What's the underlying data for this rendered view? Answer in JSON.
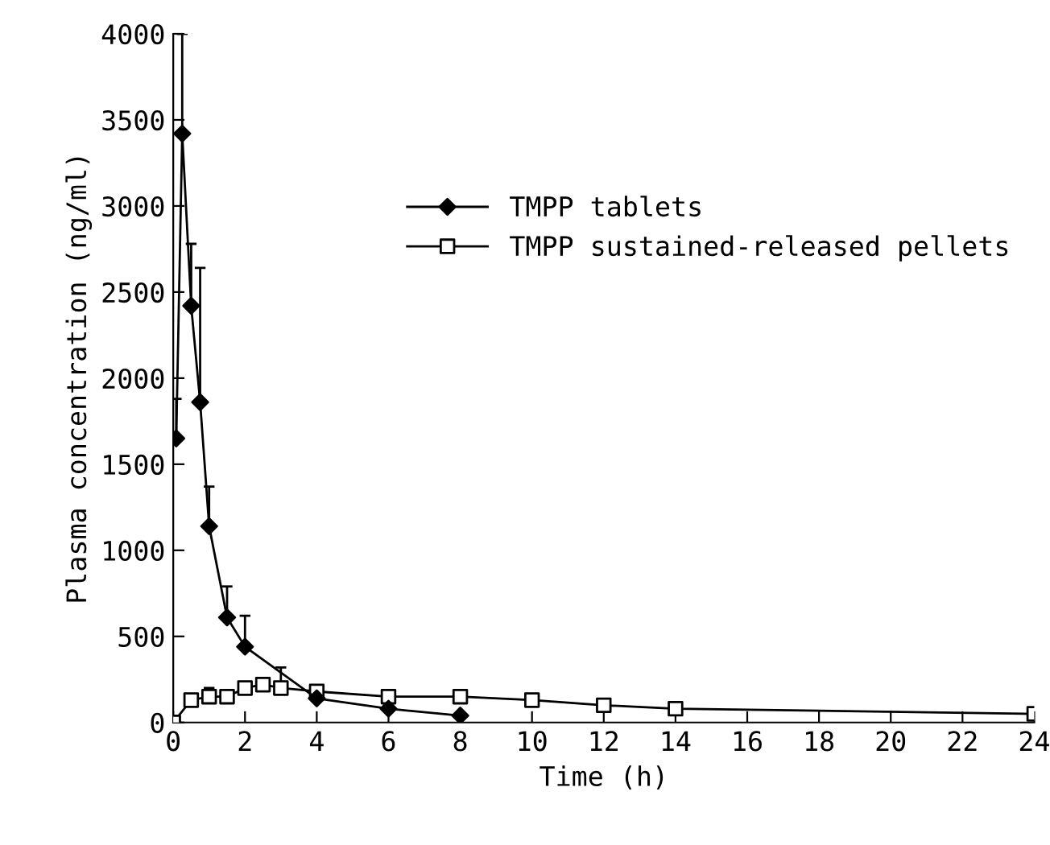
{
  "chart_data": {
    "type": "line",
    "xlabel": "Time (h)",
    "ylabel": "Plasma concentration (ng/ml)",
    "xlim": [
      0,
      24
    ],
    "ylim": [
      0,
      4000
    ],
    "xticks": [
      0,
      2,
      4,
      6,
      8,
      10,
      12,
      14,
      16,
      18,
      20,
      22,
      24
    ],
    "yticks": [
      0,
      500,
      1000,
      1500,
      2000,
      2500,
      3000,
      3500,
      4000
    ],
    "grid": false,
    "legend": "upper right",
    "line_style": "solid",
    "series": [
      {
        "name": "TMPP tablets",
        "color": "#000000",
        "marker": "diamond",
        "x": [
          0.083,
          0.25,
          0.5,
          0.75,
          1,
          1.5,
          2,
          4,
          6,
          8
        ],
        "values": [
          1650,
          3420,
          2420,
          1860,
          1140,
          610,
          440,
          140,
          80,
          40
        ],
        "errors": [
          230,
          580,
          360,
          780,
          230,
          180,
          180,
          null,
          null,
          null
        ]
      },
      {
        "name": "TMPP sustained-released pellets",
        "color": "#000000",
        "marker": "square",
        "x": [
          0,
          0.5,
          1,
          1.5,
          2,
          2.5,
          3,
          4,
          6,
          8,
          10,
          12,
          14,
          24
        ],
        "values": [
          0,
          130,
          150,
          150,
          200,
          220,
          200,
          180,
          150,
          150,
          130,
          100,
          80,
          50
        ],
        "errors": [
          null,
          null,
          50,
          null,
          null,
          null,
          120,
          30,
          30,
          30,
          30,
          null,
          null,
          null
        ]
      }
    ]
  }
}
